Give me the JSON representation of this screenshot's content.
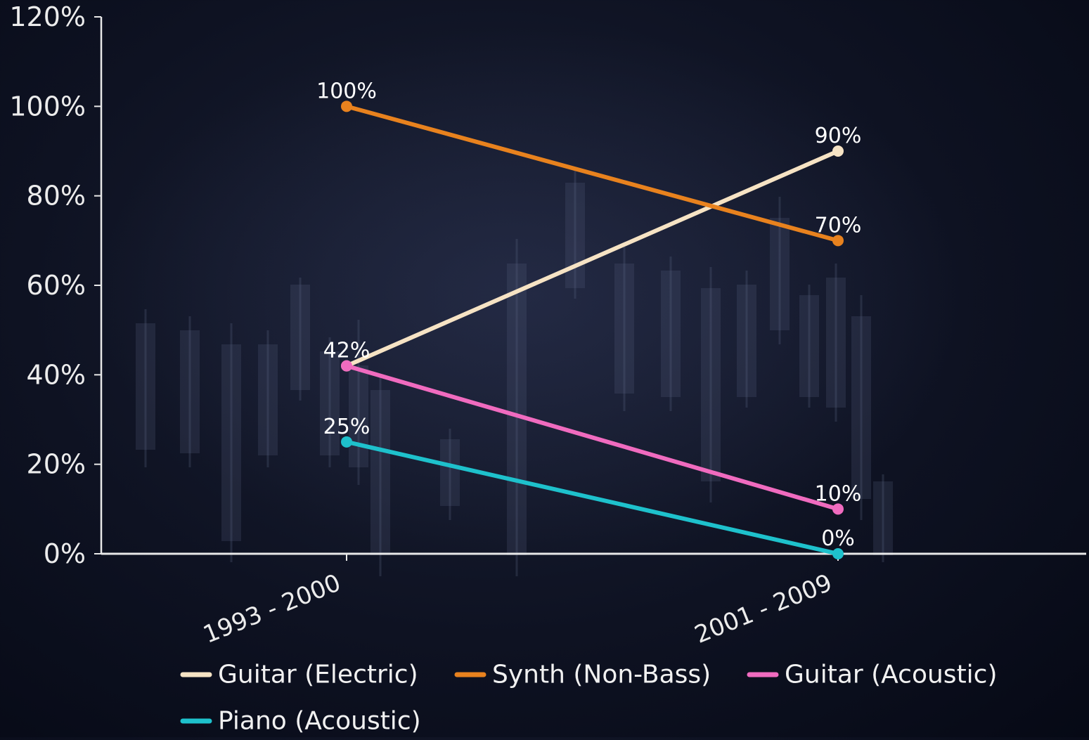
{
  "chart_data": {
    "type": "line",
    "title": "",
    "xlabel": "",
    "ylabel": "",
    "categories": [
      "1993 - 2000",
      "2001 - 2009"
    ],
    "ylim": [
      0,
      120
    ],
    "yticks": [
      "0%",
      "20%",
      "40%",
      "60%",
      "80%",
      "100%",
      "120%"
    ],
    "series": [
      {
        "name": "Guitar (Electric)",
        "values": [
          42,
          90
        ],
        "labels": [
          "42%",
          "90%"
        ],
        "color": "#f6e3c4"
      },
      {
        "name": "Synth (Non-Bass)",
        "values": [
          100,
          70
        ],
        "labels": [
          "100%",
          "70%"
        ],
        "color": "#e8821e"
      },
      {
        "name": "Guitar (Acoustic)",
        "values": [
          42,
          10
        ],
        "labels": [
          "",
          "10%"
        ],
        "color": "#f06bbf"
      },
      {
        "name": "Piano (Acoustic)",
        "values": [
          25,
          0
        ],
        "labels": [
          "25%",
          "0%"
        ],
        "color": "#1ec1cc"
      }
    ],
    "grid": false,
    "legend_position": "bottom"
  }
}
